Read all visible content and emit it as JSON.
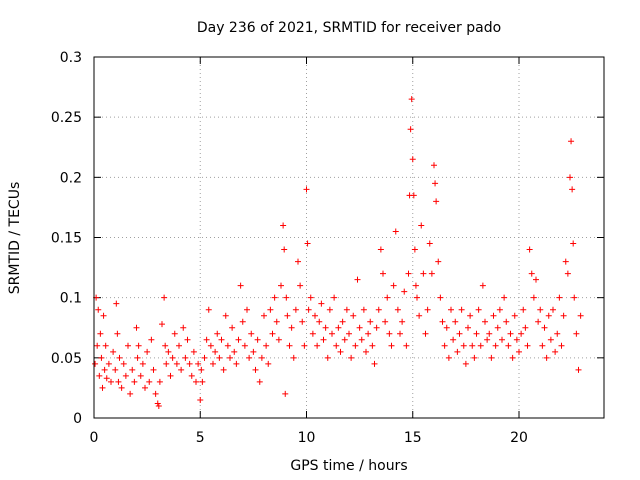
{
  "chart_data": {
    "type": "scatter",
    "title": "Day 236 of 2021, SRMTID for receiver pado",
    "xlabel": "GPS time / hours",
    "ylabel": "SRMTID / TECUs",
    "xlim": [
      0,
      24
    ],
    "ylim": [
      0,
      0.3
    ],
    "xticks": [
      0,
      5,
      10,
      15,
      20
    ],
    "xtick_labels": [
      "0",
      "5",
      "10",
      "15",
      "20"
    ],
    "yticks": [
      0,
      0.05,
      0.1,
      0.15,
      0.2,
      0.25,
      0.3
    ],
    "ytick_labels": [
      "0",
      "0.05",
      "0.1",
      "0.15",
      "0.2",
      "0.25",
      "0.3"
    ],
    "grid": true,
    "marker": "+",
    "series": [
      {
        "name": "SRMTID",
        "color": "#ff0000",
        "points": [
          [
            0.05,
            0.045
          ],
          [
            0.1,
            0.1
          ],
          [
            0.15,
            0.06
          ],
          [
            0.2,
            0.09
          ],
          [
            0.25,
            0.035
          ],
          [
            0.3,
            0.07
          ],
          [
            0.35,
            0.05
          ],
          [
            0.4,
            0.025
          ],
          [
            0.45,
            0.085
          ],
          [
            0.5,
            0.04
          ],
          [
            0.55,
            0.06
          ],
          [
            0.6,
            0.033
          ],
          [
            0.7,
            0.045
          ],
          [
            0.8,
            0.03
          ],
          [
            0.9,
            0.055
          ],
          [
            1.0,
            0.04
          ],
          [
            1.05,
            0.095
          ],
          [
            1.1,
            0.07
          ],
          [
            1.15,
            0.03
          ],
          [
            1.2,
            0.05
          ],
          [
            1.3,
            0.025
          ],
          [
            1.4,
            0.045
          ],
          [
            1.5,
            0.035
          ],
          [
            1.6,
            0.06
          ],
          [
            1.7,
            0.02
          ],
          [
            1.8,
            0.04
          ],
          [
            1.9,
            0.03
          ],
          [
            2.0,
            0.075
          ],
          [
            2.05,
            0.05
          ],
          [
            2.1,
            0.06
          ],
          [
            2.2,
            0.035
          ],
          [
            2.3,
            0.045
          ],
          [
            2.4,
            0.025
          ],
          [
            2.5,
            0.055
          ],
          [
            2.6,
            0.03
          ],
          [
            2.7,
            0.065
          ],
          [
            2.8,
            0.04
          ],
          [
            2.9,
            0.02
          ],
          [
            3.0,
            0.012
          ],
          [
            3.05,
            0.01
          ],
          [
            3.1,
            0.03
          ],
          [
            3.2,
            0.078
          ],
          [
            3.3,
            0.1
          ],
          [
            3.35,
            0.06
          ],
          [
            3.4,
            0.045
          ],
          [
            3.5,
            0.055
          ],
          [
            3.6,
            0.035
          ],
          [
            3.7,
            0.05
          ],
          [
            3.8,
            0.07
          ],
          [
            3.9,
            0.045
          ],
          [
            4.0,
            0.06
          ],
          [
            4.1,
            0.04
          ],
          [
            4.2,
            0.075
          ],
          [
            4.3,
            0.05
          ],
          [
            4.4,
            0.065
          ],
          [
            4.5,
            0.045
          ],
          [
            4.6,
            0.035
          ],
          [
            4.7,
            0.055
          ],
          [
            4.8,
            0.03
          ],
          [
            4.9,
            0.045
          ],
          [
            5.0,
            0.015
          ],
          [
            5.05,
            0.04
          ],
          [
            5.1,
            0.03
          ],
          [
            5.2,
            0.05
          ],
          [
            5.3,
            0.065
          ],
          [
            5.4,
            0.09
          ],
          [
            5.5,
            0.06
          ],
          [
            5.6,
            0.045
          ],
          [
            5.7,
            0.055
          ],
          [
            5.8,
            0.07
          ],
          [
            5.9,
            0.05
          ],
          [
            6.0,
            0.065
          ],
          [
            6.1,
            0.04
          ],
          [
            6.2,
            0.085
          ],
          [
            6.3,
            0.06
          ],
          [
            6.4,
            0.05
          ],
          [
            6.5,
            0.075
          ],
          [
            6.6,
            0.055
          ],
          [
            6.7,
            0.045
          ],
          [
            6.8,
            0.065
          ],
          [
            6.9,
            0.11
          ],
          [
            7.0,
            0.08
          ],
          [
            7.1,
            0.06
          ],
          [
            7.2,
            0.09
          ],
          [
            7.3,
            0.05
          ],
          [
            7.4,
            0.07
          ],
          [
            7.5,
            0.055
          ],
          [
            7.6,
            0.04
          ],
          [
            7.7,
            0.065
          ],
          [
            7.8,
            0.03
          ],
          [
            7.9,
            0.05
          ],
          [
            8.0,
            0.085
          ],
          [
            8.1,
            0.06
          ],
          [
            8.2,
            0.045
          ],
          [
            8.3,
            0.09
          ],
          [
            8.4,
            0.07
          ],
          [
            8.5,
            0.1
          ],
          [
            8.6,
            0.08
          ],
          [
            8.7,
            0.065
          ],
          [
            8.8,
            0.11
          ],
          [
            8.9,
            0.16
          ],
          [
            8.95,
            0.14
          ],
          [
            9.0,
            0.02
          ],
          [
            9.05,
            0.1
          ],
          [
            9.1,
            0.085
          ],
          [
            9.2,
            0.06
          ],
          [
            9.3,
            0.075
          ],
          [
            9.4,
            0.05
          ],
          [
            9.5,
            0.09
          ],
          [
            9.6,
            0.13
          ],
          [
            9.7,
            0.11
          ],
          [
            9.8,
            0.08
          ],
          [
            9.9,
            0.06
          ],
          [
            10.0,
            0.19
          ],
          [
            10.05,
            0.145
          ],
          [
            10.1,
            0.09
          ],
          [
            10.2,
            0.1
          ],
          [
            10.3,
            0.07
          ],
          [
            10.4,
            0.085
          ],
          [
            10.5,
            0.06
          ],
          [
            10.6,
            0.08
          ],
          [
            10.7,
            0.095
          ],
          [
            10.8,
            0.065
          ],
          [
            10.9,
            0.075
          ],
          [
            11.0,
            0.05
          ],
          [
            11.1,
            0.09
          ],
          [
            11.2,
            0.07
          ],
          [
            11.3,
            0.1
          ],
          [
            11.4,
            0.06
          ],
          [
            11.5,
            0.075
          ],
          [
            11.6,
            0.055
          ],
          [
            11.7,
            0.08
          ],
          [
            11.8,
            0.065
          ],
          [
            11.9,
            0.09
          ],
          [
            12.0,
            0.07
          ],
          [
            12.1,
            0.05
          ],
          [
            12.2,
            0.085
          ],
          [
            12.3,
            0.06
          ],
          [
            12.4,
            0.115
          ],
          [
            12.5,
            0.075
          ],
          [
            12.6,
            0.065
          ],
          [
            12.7,
            0.09
          ],
          [
            12.8,
            0.055
          ],
          [
            12.9,
            0.07
          ],
          [
            13.0,
            0.08
          ],
          [
            13.1,
            0.06
          ],
          [
            13.2,
            0.045
          ],
          [
            13.3,
            0.075
          ],
          [
            13.4,
            0.09
          ],
          [
            13.5,
            0.14
          ],
          [
            13.6,
            0.12
          ],
          [
            13.7,
            0.08
          ],
          [
            13.8,
            0.1
          ],
          [
            13.9,
            0.07
          ],
          [
            14.0,
            0.06
          ],
          [
            14.1,
            0.11
          ],
          [
            14.2,
            0.155
          ],
          [
            14.3,
            0.09
          ],
          [
            14.4,
            0.07
          ],
          [
            14.5,
            0.08
          ],
          [
            14.6,
            0.105
          ],
          [
            14.7,
            0.06
          ],
          [
            14.8,
            0.12
          ],
          [
            14.85,
            0.185
          ],
          [
            14.9,
            0.24
          ],
          [
            14.95,
            0.265
          ],
          [
            15.0,
            0.215
          ],
          [
            15.05,
            0.185
          ],
          [
            15.1,
            0.14
          ],
          [
            15.15,
            0.11
          ],
          [
            15.2,
            0.1
          ],
          [
            15.3,
            0.085
          ],
          [
            15.4,
            0.16
          ],
          [
            15.5,
            0.12
          ],
          [
            15.6,
            0.07
          ],
          [
            15.7,
            0.09
          ],
          [
            15.8,
            0.145
          ],
          [
            15.9,
            0.12
          ],
          [
            16.0,
            0.21
          ],
          [
            16.05,
            0.195
          ],
          [
            16.1,
            0.18
          ],
          [
            16.2,
            0.13
          ],
          [
            16.3,
            0.1
          ],
          [
            16.4,
            0.08
          ],
          [
            16.5,
            0.06
          ],
          [
            16.6,
            0.075
          ],
          [
            16.7,
            0.05
          ],
          [
            16.8,
            0.09
          ],
          [
            16.9,
            0.065
          ],
          [
            17.0,
            0.08
          ],
          [
            17.1,
            0.055
          ],
          [
            17.2,
            0.07
          ],
          [
            17.3,
            0.09
          ],
          [
            17.4,
            0.06
          ],
          [
            17.5,
            0.045
          ],
          [
            17.6,
            0.075
          ],
          [
            17.7,
            0.085
          ],
          [
            17.8,
            0.06
          ],
          [
            17.9,
            0.05
          ],
          [
            18.0,
            0.07
          ],
          [
            18.1,
            0.09
          ],
          [
            18.2,
            0.06
          ],
          [
            18.3,
            0.11
          ],
          [
            18.4,
            0.08
          ],
          [
            18.5,
            0.065
          ],
          [
            18.6,
            0.07
          ],
          [
            18.7,
            0.05
          ],
          [
            18.8,
            0.085
          ],
          [
            18.9,
            0.06
          ],
          [
            19.0,
            0.075
          ],
          [
            19.1,
            0.09
          ],
          [
            19.2,
            0.065
          ],
          [
            19.3,
            0.1
          ],
          [
            19.4,
            0.08
          ],
          [
            19.5,
            0.06
          ],
          [
            19.6,
            0.07
          ],
          [
            19.7,
            0.05
          ],
          [
            19.8,
            0.085
          ],
          [
            19.9,
            0.065
          ],
          [
            20.0,
            0.055
          ],
          [
            20.1,
            0.07
          ],
          [
            20.2,
            0.09
          ],
          [
            20.3,
            0.075
          ],
          [
            20.4,
            0.06
          ],
          [
            20.5,
            0.14
          ],
          [
            20.6,
            0.12
          ],
          [
            20.7,
            0.1
          ],
          [
            20.8,
            0.115
          ],
          [
            20.9,
            0.08
          ],
          [
            21.0,
            0.09
          ],
          [
            21.1,
            0.06
          ],
          [
            21.2,
            0.075
          ],
          [
            21.3,
            0.05
          ],
          [
            21.4,
            0.085
          ],
          [
            21.5,
            0.065
          ],
          [
            21.6,
            0.09
          ],
          [
            21.7,
            0.055
          ],
          [
            21.8,
            0.07
          ],
          [
            21.9,
            0.1
          ],
          [
            22.0,
            0.06
          ],
          [
            22.1,
            0.085
          ],
          [
            22.2,
            0.13
          ],
          [
            22.3,
            0.12
          ],
          [
            22.4,
            0.2
          ],
          [
            22.45,
            0.23
          ],
          [
            22.5,
            0.19
          ],
          [
            22.55,
            0.145
          ],
          [
            22.6,
            0.1
          ],
          [
            22.7,
            0.07
          ],
          [
            22.8,
            0.04
          ],
          [
            22.9,
            0.085
          ]
        ]
      }
    ]
  }
}
